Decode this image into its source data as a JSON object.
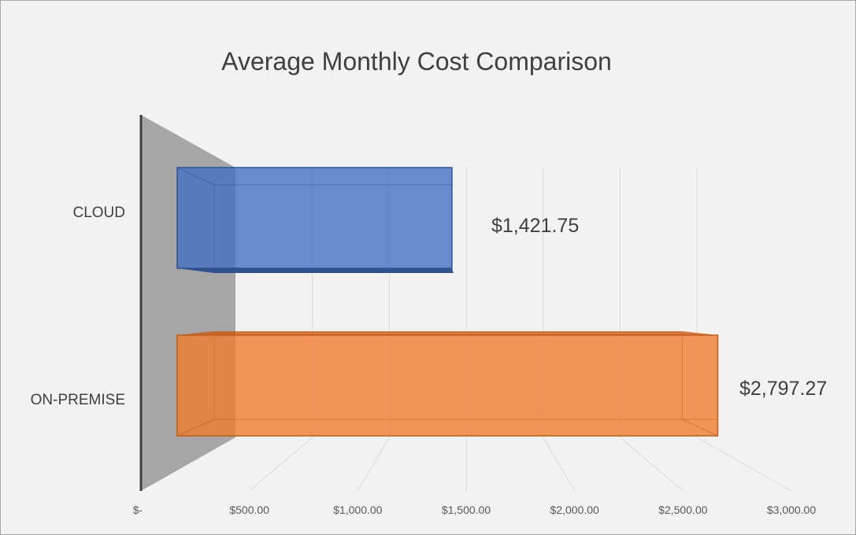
{
  "chart_data": {
    "type": "bar",
    "orientation": "horizontal",
    "style": "3d",
    "title": "Average Monthly Cost Comparison",
    "categories": [
      "CLOUD",
      "ON-PREMISE"
    ],
    "values": [
      1421.75,
      2797.27
    ],
    "data_labels": [
      "$1,421.75",
      "$2,797.27"
    ],
    "colors": [
      "#4472c4",
      "#ed7d31"
    ],
    "xlim": [
      0,
      3000
    ],
    "x_ticks": [
      0,
      500,
      1000,
      1500,
      2000,
      2500,
      3000
    ],
    "x_tick_labels": [
      "$-",
      "$500.00",
      "$1,000.00",
      "$1,500.00",
      "$2,000.00",
      "$2,500.00",
      "$3,000.00"
    ],
    "grid": true,
    "legend": "none"
  }
}
